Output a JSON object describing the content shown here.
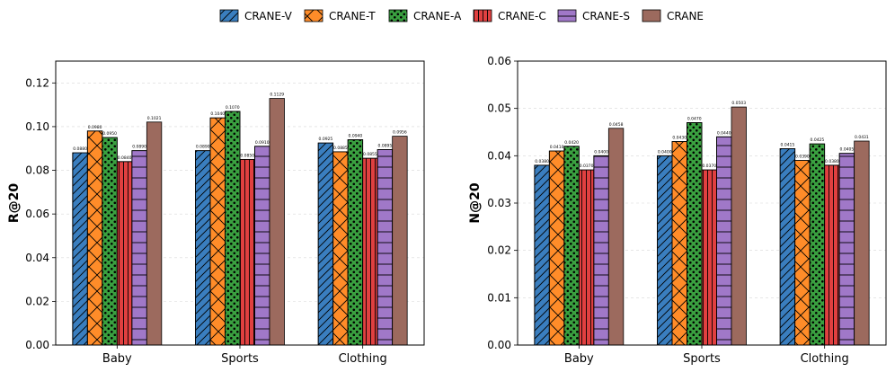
{
  "chart_data": [
    {
      "type": "bar",
      "categories": [
        "Baby",
        "Sports",
        "Clothing"
      ],
      "xlabel": "",
      "ylabel": "R@20",
      "ylim": [
        0,
        0.13
      ],
      "yticks": [
        "0.00",
        "0.02",
        "0.04",
        "0.06",
        "0.08",
        "0.10",
        "0.12"
      ],
      "grid": true,
      "series": [
        {
          "name": "CRANE-V",
          "values": [
            0.088,
            0.089,
            0.0925
          ],
          "labels": [
            "0.0880",
            "0.0890",
            "0.0925"
          ]
        },
        {
          "name": "CRANE-T",
          "values": [
            0.098,
            0.104,
            0.0885
          ],
          "labels": [
            "0.0980",
            "0.1040",
            "0.0885"
          ]
        },
        {
          "name": "CRANE-A",
          "values": [
            0.095,
            0.107,
            0.094
          ],
          "labels": [
            "0.0950",
            "0.1070",
            "0.0940"
          ]
        },
        {
          "name": "CRANE-C",
          "values": [
            0.084,
            0.085,
            0.0855
          ],
          "labels": [
            "0.0840",
            "0.0850",
            "0.0855"
          ]
        },
        {
          "name": "CRANE-S",
          "values": [
            0.089,
            0.091,
            0.0895
          ],
          "labels": [
            "0.0890",
            "0.0910",
            "0.0895"
          ]
        },
        {
          "name": "CRANE",
          "values": [
            0.1021,
            0.1129,
            0.0956
          ],
          "labels": [
            "0.1021",
            "0.1129",
            "0.0956"
          ]
        }
      ]
    },
    {
      "type": "bar",
      "categories": [
        "Baby",
        "Sports",
        "Clothing"
      ],
      "xlabel": "",
      "ylabel": "N@20",
      "ylim": [
        0,
        0.06
      ],
      "yticks": [
        "0.00",
        "0.01",
        "0.02",
        "0.03",
        "0.04",
        "0.05",
        "0.06"
      ],
      "grid": true,
      "series": [
        {
          "name": "CRANE-V",
          "values": [
            0.038,
            0.04,
            0.0415
          ],
          "labels": [
            "0.0380",
            "0.0400",
            "0.0415"
          ]
        },
        {
          "name": "CRANE-T",
          "values": [
            0.041,
            0.043,
            0.039
          ],
          "labels": [
            "0.0410",
            "0.0430",
            "0.0390"
          ]
        },
        {
          "name": "CRANE-A",
          "values": [
            0.042,
            0.047,
            0.0425
          ],
          "labels": [
            "0.0420",
            "0.0470",
            "0.0425"
          ]
        },
        {
          "name": "CRANE-C",
          "values": [
            0.037,
            0.037,
            0.038
          ],
          "labels": [
            "0.0370",
            "0.0370",
            "0.0380"
          ]
        },
        {
          "name": "CRANE-S",
          "values": [
            0.04,
            0.044,
            0.0405
          ],
          "labels": [
            "0.0400",
            "0.0440",
            "0.0405"
          ]
        },
        {
          "name": "CRANE",
          "values": [
            0.0458,
            0.0503,
            0.0431
          ],
          "labels": [
            "0.0458",
            "0.0503",
            "0.0431"
          ]
        }
      ]
    }
  ],
  "legend": {
    "placement": "top-center",
    "entries": [
      {
        "name": "CRANE-V",
        "color": "#3a7ebf",
        "hatch": "diagonal"
      },
      {
        "name": "CRANE-T",
        "color": "#ff8c29",
        "hatch": "cross"
      },
      {
        "name": "CRANE-A",
        "color": "#3aa040",
        "hatch": "dots"
      },
      {
        "name": "CRANE-C",
        "color": "#e04040",
        "hatch": "vertical"
      },
      {
        "name": "CRANE-S",
        "color": "#a078c8",
        "hatch": "horizontal"
      },
      {
        "name": "CRANE",
        "color": "#9c6a5e",
        "hatch": "none"
      }
    ]
  }
}
